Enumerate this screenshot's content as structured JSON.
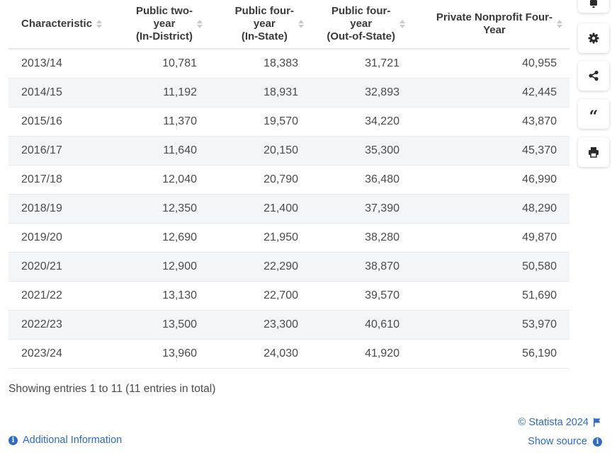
{
  "table": {
    "headers": [
      "Characteristic",
      "Public two-\nyear\n(In-District)",
      "Public four-\nyear\n(In-State)",
      "Public four-\nyear\n(Out-of-State)",
      "Private Nonprofit Four-\nYear"
    ],
    "rows": [
      [
        "2013/14",
        "10,781",
        "18,383",
        "31,721",
        "40,955"
      ],
      [
        "2014/15",
        "11,192",
        "18,931",
        "32,893",
        "42,445"
      ],
      [
        "2015/16",
        "11,370",
        "19,570",
        "34,220",
        "43,870"
      ],
      [
        "2016/17",
        "11,640",
        "20,150",
        "35,300",
        "45,370"
      ],
      [
        "2017/18",
        "12,040",
        "20,790",
        "36,480",
        "46,990"
      ],
      [
        "2018/19",
        "12,350",
        "21,400",
        "37,390",
        "48,290"
      ],
      [
        "2019/20",
        "12,690",
        "21,950",
        "38,280",
        "49,870"
      ],
      [
        "2020/21",
        "12,900",
        "22,290",
        "38,870",
        "50,580"
      ],
      [
        "2021/22",
        "13,130",
        "22,700",
        "39,570",
        "51,690"
      ],
      [
        "2022/23",
        "13,500",
        "23,300",
        "40,610",
        "53,970"
      ],
      [
        "2023/24",
        "13,960",
        "24,030",
        "41,920",
        "56,190"
      ]
    ]
  },
  "footer": {
    "entries_text": "Showing entries 1 to 11 (11 entries in total)",
    "copyright": "© Statista 2024",
    "additional_info": "Additional Information",
    "show_source": "Show source"
  },
  "toolbar": {
    "buttons": [
      "notification-icon",
      "gear-icon",
      "share-icon",
      "quote-icon",
      "print-icon"
    ]
  },
  "colors": {
    "link": "#2d6bc4",
    "row_stripe": "#f3f6f9",
    "text": "#4a4a4a"
  }
}
